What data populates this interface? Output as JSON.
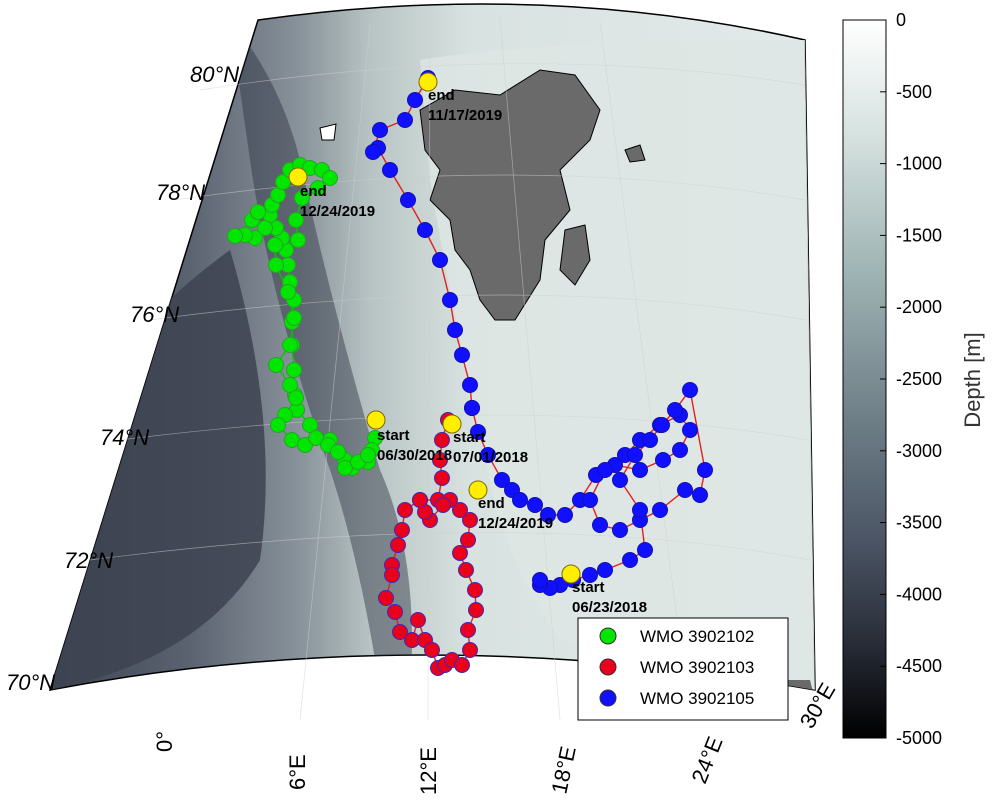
{
  "map": {
    "lat_labels": [
      "80°N",
      "78°N",
      "76°N",
      "74°N",
      "72°N",
      "70°N"
    ],
    "lon_labels": [
      "0°",
      "6°E",
      "12°E",
      "18°E",
      "24°E",
      "30°E"
    ],
    "annotations": [
      {
        "id": "a1",
        "lines": [
          "end",
          "11/17/2019"
        ]
      },
      {
        "id": "a2",
        "lines": [
          "end",
          "12/24/2019"
        ]
      },
      {
        "id": "a3",
        "lines": [
          "start",
          "06/30/2018"
        ]
      },
      {
        "id": "a4",
        "lines": [
          "start",
          "07/01/2018"
        ]
      },
      {
        "id": "a5",
        "lines": [
          "end",
          "12/24/2019"
        ]
      },
      {
        "id": "a6",
        "lines": [
          "start",
          "06/23/2018"
        ]
      }
    ],
    "floats": [
      {
        "wmo": "WMO 3902102",
        "color": "#00e600",
        "line_color": "#00c800"
      },
      {
        "wmo": "WMO 3902103",
        "color": "#e8001c",
        "line_color": "#e02020"
      },
      {
        "wmo": "WMO 3902105",
        "color": "#1010ff",
        "line_color": "#e02020"
      }
    ],
    "marker_color": "#ffee00"
  },
  "colorbar": {
    "title": "Depth [m]",
    "ticks": [
      "0",
      "-500",
      "-1000",
      "-1500",
      "-2000",
      "-2500",
      "-3000",
      "-3500",
      "-4000",
      "-4500",
      "-5000"
    ]
  },
  "legend": {
    "items": [
      "WMO 3902102",
      "WMO 3902103",
      "WMO 3902105"
    ]
  }
}
